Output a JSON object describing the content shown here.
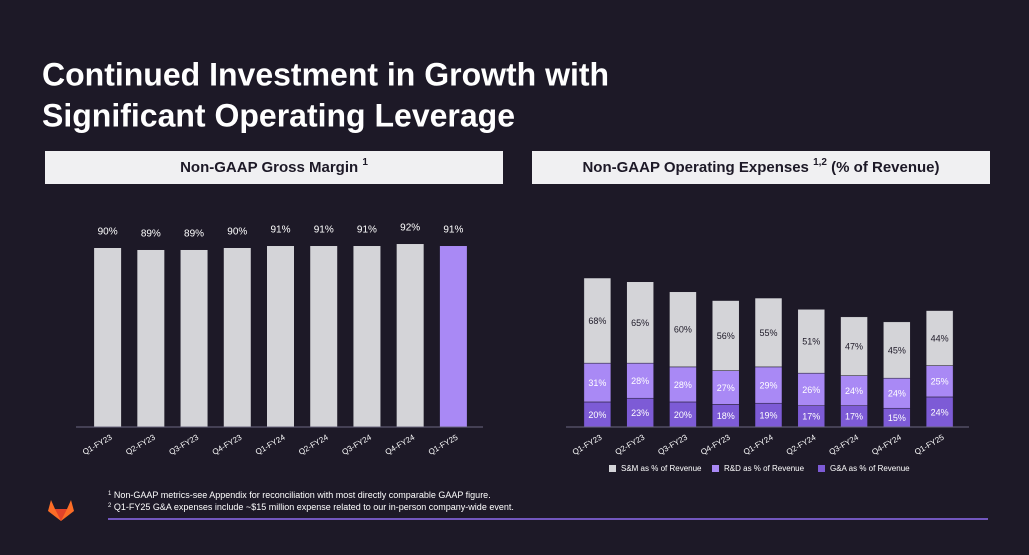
{
  "title": [
    "Continued Investment in Growth with",
    "Significant Operating Leverage"
  ],
  "footnotes": [
    {
      "mark": "1",
      "text": "Non-GAAP metrics-see Appendix for reconciliation with most directly comparable GAAP figure."
    },
    {
      "mark": "2",
      "text": "Q1-FY25 G&A expenses include ~$15 million expense related to our in-person company-wide event."
    }
  ],
  "chart_data": [
    {
      "type": "bar",
      "title": "Non-GAAP Gross Margin",
      "title_note": "1",
      "categories": [
        "Q1-FY23",
        "Q2-FY23",
        "Q3-FY23",
        "Q4-FY23",
        "Q1-FY24",
        "Q2-FY24",
        "Q3-FY24",
        "Q4-FY24",
        "Q1-FY25"
      ],
      "values": [
        90,
        89,
        89,
        90,
        91,
        91,
        91,
        92,
        91
      ],
      "value_labels": [
        "90%",
        "89%",
        "89%",
        "90%",
        "91%",
        "91%",
        "91%",
        "92%",
        "91%"
      ],
      "colors": [
        "#d4d4d8",
        "#d4d4d8",
        "#d4d4d8",
        "#d4d4d8",
        "#d4d4d8",
        "#d4d4d8",
        "#d4d4d8",
        "#d4d4d8",
        "#a989f5"
      ],
      "ylim": [
        0,
        100
      ]
    },
    {
      "type": "stacked_bar",
      "title": "Non-GAAP Operating Expenses",
      "title_note": "1,2",
      "title_suffix": "(% of Revenue)",
      "categories": [
        "Q1-FY23",
        "Q2-FY23",
        "Q3-FY23",
        "Q4-FY23",
        "Q1-FY24",
        "Q2-FY24",
        "Q3-FY24",
        "Q4-FY24",
        "Q1-FY25"
      ],
      "series": [
        {
          "name": "G&A as % of Revenue",
          "color": "#7d5bd6",
          "values": [
            20,
            23,
            20,
            18,
            19,
            17,
            17,
            15,
            24
          ],
          "value_labels": [
            "20%",
            "23%",
            "20%",
            "18%",
            "19%",
            "17%",
            "17%",
            "15%",
            "24%"
          ]
        },
        {
          "name": "R&D as % of Revenue",
          "color": "#a989f5",
          "values": [
            31,
            28,
            28,
            27,
            29,
            26,
            24,
            24,
            25
          ],
          "value_labels": [
            "31%",
            "28%",
            "28%",
            "27%",
            "29%",
            "26%",
            "24%",
            "24%",
            "25%"
          ]
        },
        {
          "name": "S&M as % of Revenue",
          "color": "#d4d4d8",
          "values": [
            68,
            65,
            60,
            56,
            55,
            51,
            47,
            45,
            44
          ],
          "value_labels": [
            "68%",
            "65%",
            "60%",
            "56%",
            "55%",
            "51%",
            "47%",
            "45%",
            "44%"
          ]
        }
      ],
      "legend_order": [
        2,
        1,
        0
      ],
      "ylim": [
        0,
        120
      ]
    }
  ]
}
